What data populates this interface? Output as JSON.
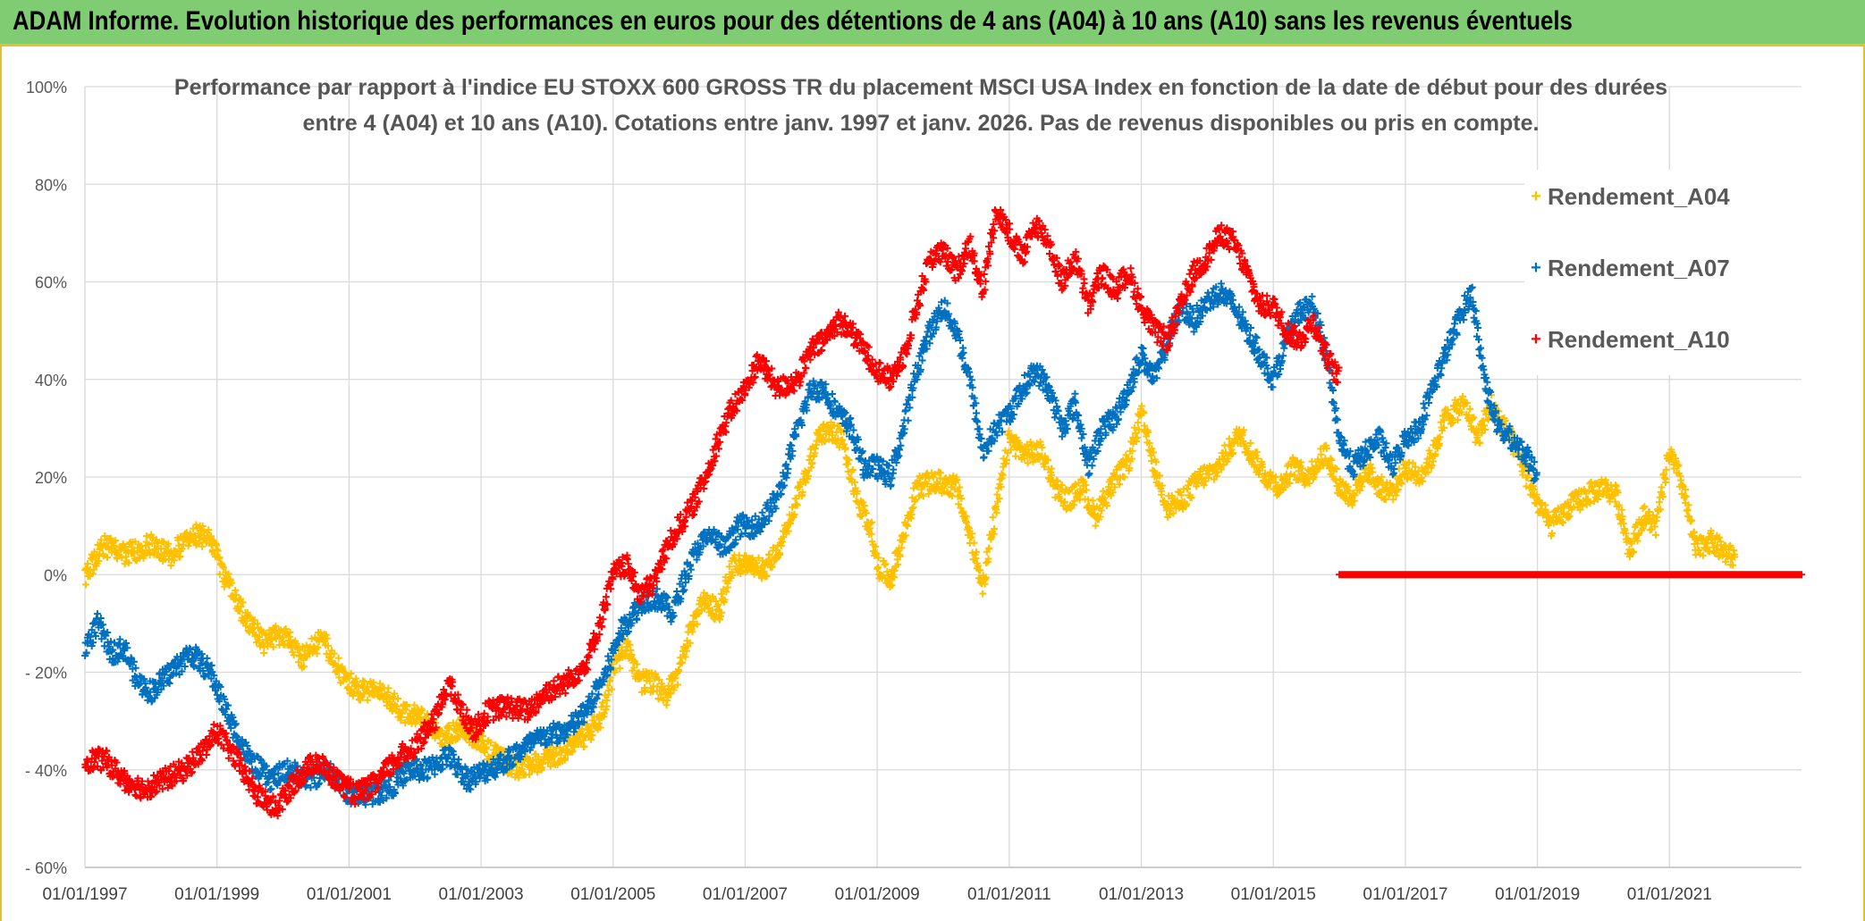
{
  "banner": {
    "title": "ADAM Informe. Evolution historique des performances en euros pour des détentions de 4 ans (A04) à 10 ans (A10) sans les revenus éventuels"
  },
  "colors": {
    "banner_bg": "#7fcc72",
    "frame_accent": "#e0c030",
    "A04": "#ffc000",
    "A07": "#0070c0",
    "A10": "#ff0000"
  },
  "chart_data": {
    "type": "scatter",
    "title_line1": "Performance par rapport à l'indice EU STOXX 600 GROSS TR  du placement MSCI USA Index en fonction de la date de début pour des durées",
    "title_line2": "entre 4 (A04) et 10 ans (A10). Cotations entre janv. 1997 et janv. 2026. Pas de revenus disponibles ou pris en compte.",
    "x_ticks": [
      "01/01/1997",
      "01/01/1999",
      "01/01/2001",
      "01/01/2003",
      "01/01/2005",
      "01/01/2007",
      "01/01/2009",
      "01/01/2011",
      "01/01/2013",
      "01/01/2015",
      "01/01/2017",
      "01/01/2019",
      "01/01/2021"
    ],
    "y_ticks": [
      "100%",
      "80%",
      "60%",
      "40%",
      "20%",
      "0%",
      "- 20%",
      "- 40%",
      "- 60%"
    ],
    "xlim": [
      "01/01/1997",
      "01/01/2023"
    ],
    "ylim": [
      -60,
      100
    ],
    "grid": true,
    "legend_position": "top-right",
    "series": [
      {
        "name": "Rendement_A04",
        "color": "#ffc000",
        "points": [
          [
            1997.0,
            0
          ],
          [
            1997.3,
            6
          ],
          [
            1997.6,
            4
          ],
          [
            1998.0,
            6
          ],
          [
            1998.3,
            4
          ],
          [
            1998.6,
            8
          ],
          [
            1998.9,
            8
          ],
          [
            1999.1,
            0
          ],
          [
            1999.4,
            -8
          ],
          [
            1999.7,
            -14
          ],
          [
            2000.0,
            -12
          ],
          [
            2000.3,
            -17
          ],
          [
            2000.6,
            -13
          ],
          [
            2000.9,
            -21
          ],
          [
            2001.2,
            -24
          ],
          [
            2001.5,
            -24
          ],
          [
            2001.8,
            -28
          ],
          [
            2002.1,
            -29
          ],
          [
            2002.4,
            -34
          ],
          [
            2002.7,
            -31
          ],
          [
            2003.0,
            -35
          ],
          [
            2003.3,
            -38
          ],
          [
            2003.6,
            -40
          ],
          [
            2003.9,
            -38
          ],
          [
            2004.2,
            -37
          ],
          [
            2004.5,
            -34
          ],
          [
            2004.8,
            -30
          ],
          [
            2005.0,
            -20
          ],
          [
            2005.2,
            -14
          ],
          [
            2005.4,
            -22
          ],
          [
            2005.6,
            -22
          ],
          [
            2005.8,
            -25
          ],
          [
            2006.0,
            -20
          ],
          [
            2006.2,
            -10
          ],
          [
            2006.4,
            -5
          ],
          [
            2006.6,
            -8
          ],
          [
            2006.8,
            2
          ],
          [
            2007.0,
            2
          ],
          [
            2007.3,
            1
          ],
          [
            2007.6,
            8
          ],
          [
            2007.9,
            20
          ],
          [
            2008.1,
            28
          ],
          [
            2008.3,
            30
          ],
          [
            2008.5,
            27
          ],
          [
            2008.7,
            15
          ],
          [
            2008.9,
            10
          ],
          [
            2009.0,
            2
          ],
          [
            2009.2,
            -1
          ],
          [
            2009.4,
            8
          ],
          [
            2009.6,
            18
          ],
          [
            2009.9,
            19
          ],
          [
            2010.2,
            18
          ],
          [
            2010.4,
            8
          ],
          [
            2010.6,
            -2
          ],
          [
            2010.8,
            13
          ],
          [
            2011.0,
            28
          ],
          [
            2011.2,
            25
          ],
          [
            2011.5,
            25
          ],
          [
            2011.7,
            18
          ],
          [
            2011.9,
            15
          ],
          [
            2012.1,
            18
          ],
          [
            2012.3,
            12
          ],
          [
            2012.5,
            17
          ],
          [
            2012.8,
            23
          ],
          [
            2013.0,
            33
          ],
          [
            2013.2,
            22
          ],
          [
            2013.4,
            14
          ],
          [
            2013.6,
            15
          ],
          [
            2013.9,
            20
          ],
          [
            2014.1,
            21
          ],
          [
            2014.3,
            25
          ],
          [
            2014.5,
            29
          ],
          [
            2014.7,
            24
          ],
          [
            2014.9,
            20
          ],
          [
            2015.1,
            18
          ],
          [
            2015.3,
            22
          ],
          [
            2015.5,
            20
          ],
          [
            2015.8,
            25
          ],
          [
            2016.0,
            18
          ],
          [
            2016.2,
            16
          ],
          [
            2016.4,
            22
          ],
          [
            2016.6,
            18
          ],
          [
            2016.8,
            17
          ],
          [
            2017.0,
            22
          ],
          [
            2017.2,
            20
          ],
          [
            2017.4,
            24
          ],
          [
            2017.6,
            32
          ],
          [
            2017.9,
            35
          ],
          [
            2018.1,
            28
          ],
          [
            2018.3,
            35
          ],
          [
            2018.5,
            30
          ],
          [
            2018.7,
            25
          ],
          [
            2018.9,
            18
          ],
          [
            2019.0,
            15
          ],
          [
            2019.2,
            10
          ],
          [
            2019.5,
            14
          ],
          [
            2019.7,
            16
          ],
          [
            2020.0,
            18
          ],
          [
            2020.2,
            16
          ],
          [
            2020.4,
            5
          ],
          [
            2020.6,
            12
          ],
          [
            2020.8,
            10
          ],
          [
            2021.0,
            25
          ],
          [
            2021.2,
            18
          ],
          [
            2021.4,
            5
          ],
          [
            2021.6,
            7
          ],
          [
            2021.8,
            5
          ],
          [
            2022.0,
            3
          ]
        ]
      },
      {
        "name": "Rendement_A07",
        "color": "#0070c0",
        "points": [
          [
            1997.0,
            -15
          ],
          [
            1997.2,
            -10
          ],
          [
            1997.4,
            -16
          ],
          [
            1997.6,
            -15
          ],
          [
            1997.8,
            -22
          ],
          [
            1998.0,
            -24
          ],
          [
            1998.3,
            -20
          ],
          [
            1998.6,
            -16
          ],
          [
            1998.9,
            -20
          ],
          [
            1999.2,
            -30
          ],
          [
            1999.5,
            -38
          ],
          [
            1999.8,
            -42
          ],
          [
            2000.1,
            -40
          ],
          [
            2000.4,
            -42
          ],
          [
            2000.7,
            -40
          ],
          [
            2001.0,
            -45
          ],
          [
            2001.3,
            -45
          ],
          [
            2001.6,
            -44
          ],
          [
            2001.9,
            -40
          ],
          [
            2002.2,
            -40
          ],
          [
            2002.5,
            -37
          ],
          [
            2002.8,
            -42
          ],
          [
            2003.1,
            -40
          ],
          [
            2003.4,
            -38
          ],
          [
            2003.7,
            -35
          ],
          [
            2004.0,
            -33
          ],
          [
            2004.3,
            -32
          ],
          [
            2004.6,
            -28
          ],
          [
            2004.9,
            -20
          ],
          [
            2005.1,
            -12
          ],
          [
            2005.3,
            -8
          ],
          [
            2005.5,
            -5
          ],
          [
            2005.7,
            -5
          ],
          [
            2005.9,
            -8
          ],
          [
            2006.1,
            0
          ],
          [
            2006.3,
            6
          ],
          [
            2006.5,
            8
          ],
          [
            2006.7,
            5
          ],
          [
            2006.9,
            10
          ],
          [
            2007.2,
            10
          ],
          [
            2007.5,
            16
          ],
          [
            2007.8,
            30
          ],
          [
            2008.0,
            38
          ],
          [
            2008.2,
            38
          ],
          [
            2008.4,
            33
          ],
          [
            2008.6,
            30
          ],
          [
            2008.8,
            22
          ],
          [
            2009.0,
            22
          ],
          [
            2009.2,
            20
          ],
          [
            2009.4,
            30
          ],
          [
            2009.6,
            42
          ],
          [
            2009.8,
            50
          ],
          [
            2010.0,
            55
          ],
          [
            2010.2,
            50
          ],
          [
            2010.4,
            40
          ],
          [
            2010.6,
            25
          ],
          [
            2010.8,
            30
          ],
          [
            2011.0,
            33
          ],
          [
            2011.2,
            38
          ],
          [
            2011.4,
            42
          ],
          [
            2011.6,
            38
          ],
          [
            2011.8,
            30
          ],
          [
            2012.0,
            35
          ],
          [
            2012.2,
            22
          ],
          [
            2012.4,
            30
          ],
          [
            2012.6,
            32
          ],
          [
            2012.8,
            38
          ],
          [
            2013.0,
            45
          ],
          [
            2013.2,
            40
          ],
          [
            2013.4,
            48
          ],
          [
            2013.6,
            55
          ],
          [
            2013.8,
            52
          ],
          [
            2014.0,
            56
          ],
          [
            2014.2,
            58
          ],
          [
            2014.4,
            55
          ],
          [
            2014.6,
            50
          ],
          [
            2014.8,
            45
          ],
          [
            2015.0,
            40
          ],
          [
            2015.2,
            48
          ],
          [
            2015.4,
            54
          ],
          [
            2015.6,
            55
          ],
          [
            2015.8,
            45
          ],
          [
            2016.0,
            28
          ],
          [
            2016.2,
            22
          ],
          [
            2016.4,
            25
          ],
          [
            2016.6,
            28
          ],
          [
            2016.8,
            22
          ],
          [
            2017.0,
            28
          ],
          [
            2017.2,
            30
          ],
          [
            2017.4,
            38
          ],
          [
            2017.6,
            45
          ],
          [
            2017.8,
            52
          ],
          [
            2018.0,
            58
          ],
          [
            2018.2,
            40
          ],
          [
            2018.4,
            30
          ],
          [
            2018.6,
            28
          ],
          [
            2018.8,
            25
          ],
          [
            2019.0,
            20
          ]
        ]
      },
      {
        "name": "Rendement_A10",
        "color": "#ff0000",
        "points": [
          [
            1997.0,
            -38
          ],
          [
            1997.3,
            -38
          ],
          [
            1997.6,
            -42
          ],
          [
            1997.9,
            -44
          ],
          [
            1998.2,
            -42
          ],
          [
            1998.5,
            -40
          ],
          [
            1998.8,
            -36
          ],
          [
            1999.0,
            -32
          ],
          [
            1999.3,
            -38
          ],
          [
            1999.6,
            -45
          ],
          [
            1999.9,
            -48
          ],
          [
            2000.2,
            -42
          ],
          [
            2000.5,
            -38
          ],
          [
            2000.8,
            -42
          ],
          [
            2001.1,
            -45
          ],
          [
            2001.4,
            -43
          ],
          [
            2001.7,
            -38
          ],
          [
            2002.0,
            -35
          ],
          [
            2002.3,
            -30
          ],
          [
            2002.5,
            -22
          ],
          [
            2002.7,
            -28
          ],
          [
            2002.9,
            -32
          ],
          [
            2003.1,
            -28
          ],
          [
            2003.4,
            -27
          ],
          [
            2003.7,
            -28
          ],
          [
            2004.0,
            -24
          ],
          [
            2004.3,
            -22
          ],
          [
            2004.6,
            -18
          ],
          [
            2004.8,
            -10
          ],
          [
            2005.0,
            0
          ],
          [
            2005.2,
            2
          ],
          [
            2005.4,
            -4
          ],
          [
            2005.6,
            -2
          ],
          [
            2005.8,
            5
          ],
          [
            2006.0,
            10
          ],
          [
            2006.2,
            14
          ],
          [
            2006.4,
            20
          ],
          [
            2006.6,
            28
          ],
          [
            2006.8,
            34
          ],
          [
            2007.0,
            38
          ],
          [
            2007.2,
            44
          ],
          [
            2007.5,
            38
          ],
          [
            2007.8,
            40
          ],
          [
            2008.0,
            46
          ],
          [
            2008.2,
            48
          ],
          [
            2008.4,
            52
          ],
          [
            2008.6,
            50
          ],
          [
            2008.8,
            46
          ],
          [
            2009.0,
            42
          ],
          [
            2009.2,
            40
          ],
          [
            2009.4,
            45
          ],
          [
            2009.6,
            55
          ],
          [
            2009.8,
            65
          ],
          [
            2010.0,
            66
          ],
          [
            2010.2,
            62
          ],
          [
            2010.4,
            68
          ],
          [
            2010.6,
            58
          ],
          [
            2010.8,
            75
          ],
          [
            2011.0,
            70
          ],
          [
            2011.2,
            65
          ],
          [
            2011.4,
            72
          ],
          [
            2011.6,
            68
          ],
          [
            2011.8,
            60
          ],
          [
            2012.0,
            65
          ],
          [
            2012.2,
            55
          ],
          [
            2012.4,
            62
          ],
          [
            2012.6,
            58
          ],
          [
            2012.8,
            62
          ],
          [
            2013.0,
            55
          ],
          [
            2013.2,
            50
          ],
          [
            2013.4,
            48
          ],
          [
            2013.6,
            55
          ],
          [
            2013.8,
            62
          ],
          [
            2014.0,
            65
          ],
          [
            2014.2,
            70
          ],
          [
            2014.4,
            68
          ],
          [
            2014.6,
            62
          ],
          [
            2014.8,
            55
          ],
          [
            2015.0,
            55
          ],
          [
            2015.2,
            50
          ],
          [
            2015.4,
            48
          ],
          [
            2015.6,
            52
          ],
          [
            2015.8,
            45
          ],
          [
            2016.0,
            40
          ]
        ]
      },
      {
        "name": "",
        "color": "#ff0000",
        "points": [
          [
            2016.0,
            0
          ],
          [
            2023.0,
            0
          ]
        ]
      }
    ]
  }
}
